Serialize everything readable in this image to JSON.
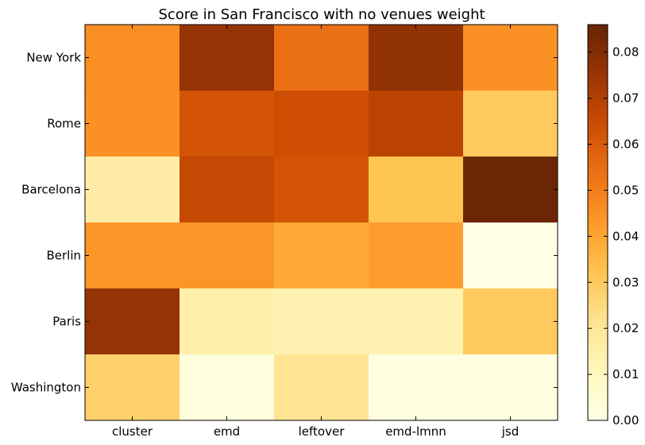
{
  "chart_data": {
    "type": "heatmap",
    "title": "Score in San Francisco with no venues weight",
    "xlabel": "",
    "ylabel": "",
    "columns": [
      "cluster",
      "emd",
      "leftover",
      "emd-lmnn",
      "jsd"
    ],
    "rows": [
      "New York",
      "Rome",
      "Barcelona",
      "Berlin",
      "Paris",
      "Washington"
    ],
    "values": [
      [
        0.046,
        0.076,
        0.054,
        0.077,
        0.045
      ],
      [
        0.045,
        0.062,
        0.064,
        0.068,
        0.03
      ],
      [
        0.016,
        0.066,
        0.062,
        0.032,
        0.085
      ],
      [
        0.044,
        0.044,
        0.039,
        0.042,
        0.0
      ],
      [
        0.076,
        0.015,
        0.014,
        0.014,
        0.03
      ],
      [
        0.028,
        0.002,
        0.021,
        0.001,
        0.001
      ]
    ],
    "colormap": "YlOrBr",
    "color_range": [
      0.0,
      0.086
    ],
    "colorbar_ticks": [
      "0.00",
      "0.01",
      "0.02",
      "0.03",
      "0.04",
      "0.05",
      "0.06",
      "0.07",
      "0.08"
    ],
    "colorbar_tick_values": [
      0.0,
      0.01,
      0.02,
      0.03,
      0.04,
      0.05,
      0.06,
      0.07,
      0.08
    ],
    "colorbar_position": "right",
    "grid": false
  }
}
